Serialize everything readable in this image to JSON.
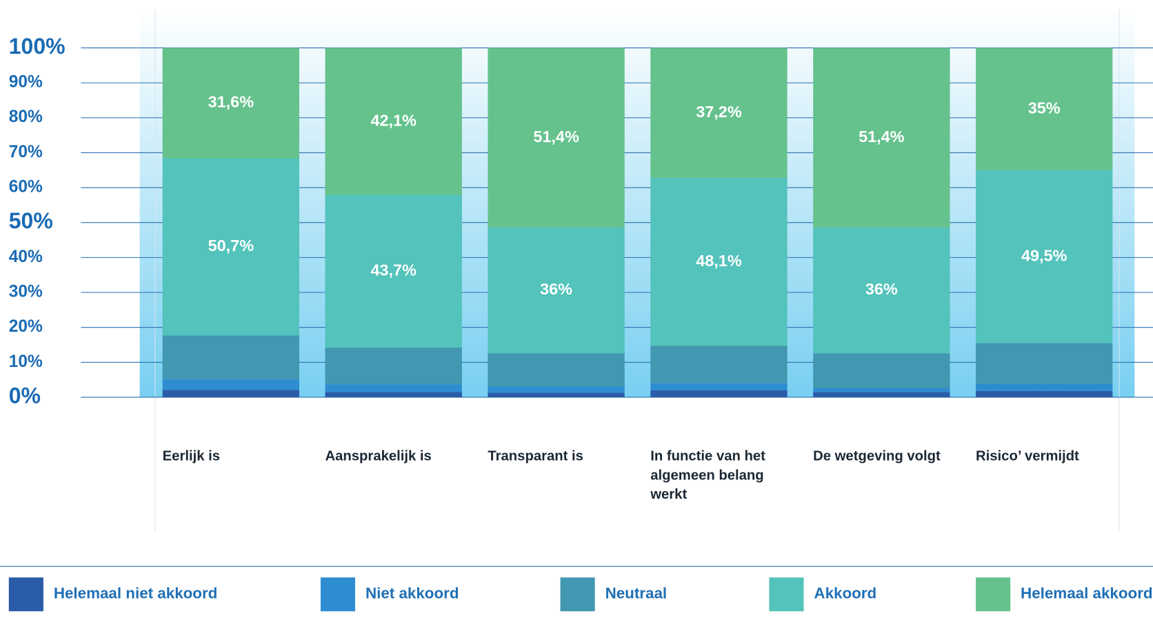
{
  "chart_data": {
    "type": "stacked_bar",
    "categories": [
      "Eerlijk is",
      "Aansprakelijk is",
      "Transparant is",
      "In functie van het algemeen belang werkt",
      "De wetgeving volgt",
      "Risico’ vermijdt"
    ],
    "series": [
      {
        "name": "Helemaal niet akkoord",
        "color": "#2a5ca8",
        "values": [
          2.1,
          1.5,
          1.3,
          2.0,
          1.5,
          1.8
        ]
      },
      {
        "name": "Niet akkoord",
        "color": "#2e8cd1",
        "values": [
          3.0,
          2.2,
          1.8,
          2.0,
          1.2,
          2.0
        ]
      },
      {
        "name": "Neutraal",
        "color": "#4297b1",
        "values": [
          12.6,
          10.5,
          9.5,
          10.7,
          9.9,
          11.7
        ]
      },
      {
        "name": "Akkoord",
        "color": "#53c3bb",
        "values": [
          50.7,
          43.7,
          36,
          48.1,
          36,
          49.5
        ],
        "value_labels": [
          "50,7%",
          "43,7%",
          "36%",
          "48,1%",
          "36%",
          "49,5%"
        ]
      },
      {
        "name": "Helemaal akkoord",
        "color": "#65c28d",
        "values": [
          31.6,
          42.1,
          51.4,
          37.2,
          51.4,
          35
        ],
        "value_labels": [
          "31,6%",
          "42,1%",
          "51,4%",
          "37,2%",
          "51,4%",
          "35%"
        ]
      }
    ],
    "ylim": [
      0,
      100
    ],
    "yticks": [
      {
        "value": 0,
        "label": "0%"
      },
      {
        "value": 10,
        "label": "10%"
      },
      {
        "value": 20,
        "label": "20%"
      },
      {
        "value": 30,
        "label": "30%"
      },
      {
        "value": 40,
        "label": "40%"
      },
      {
        "value": 50,
        "label": "50%"
      },
      {
        "value": 60,
        "label": "60%"
      },
      {
        "value": 70,
        "label": "70%"
      },
      {
        "value": 80,
        "label": "80%"
      },
      {
        "value": 90,
        "label": "90%"
      },
      {
        "value": 100,
        "label": "100%"
      }
    ],
    "grid": true,
    "legend": "bottom"
  }
}
